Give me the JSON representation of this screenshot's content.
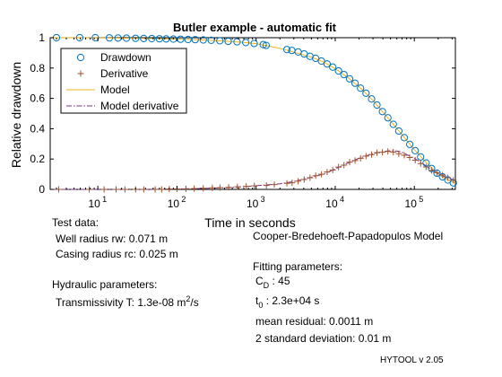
{
  "chart_data": {
    "type": "scatter",
    "title": "Butler example - automatic fit",
    "xlabel": "Time in seconds",
    "ylabel": "Relative drawdown",
    "x_scale": "log",
    "xlim": [
      2.5,
      330000
    ],
    "ylim": [
      0,
      1
    ],
    "x_ticks": [
      10,
      100,
      1000,
      10000,
      100000
    ],
    "x_tick_labels": [
      {
        "base": "10",
        "exp": "1"
      },
      {
        "base": "10",
        "exp": "2"
      },
      {
        "base": "10",
        "exp": "3"
      },
      {
        "base": "10",
        "exp": "4"
      },
      {
        "base": "10",
        "exp": "5"
      }
    ],
    "y_ticks": [
      0,
      0.2,
      0.4,
      0.6,
      0.8,
      1
    ],
    "y_tick_labels": [
      "0",
      "0.2",
      "0.4",
      "0.6",
      "0.8",
      "1"
    ],
    "grid": false,
    "legend_placement": "top-left",
    "series": [
      {
        "name": "Drawdown",
        "marker": "circle",
        "color": "#0072bd",
        "fill": "#ffd84a",
        "points": [
          [
            3,
            1.0
          ],
          [
            5.9,
            1.0
          ],
          [
            9.3,
            1.0
          ],
          [
            14,
            0.999
          ],
          [
            18,
            0.998
          ],
          [
            23,
            0.997
          ],
          [
            30,
            0.996
          ],
          [
            38,
            0.995
          ],
          [
            48,
            0.994
          ],
          [
            60,
            0.993
          ],
          [
            73,
            0.992
          ],
          [
            90,
            0.991
          ],
          [
            111,
            0.99
          ],
          [
            138,
            0.988
          ],
          [
            170,
            0.987
          ],
          [
            215,
            0.985
          ],
          [
            271,
            0.983
          ],
          [
            348,
            0.98
          ],
          [
            444,
            0.976
          ],
          [
            574,
            0.973
          ],
          [
            740,
            0.968
          ],
          [
            945,
            0.962
          ],
          [
            1230,
            0.954
          ],
          [
            1340,
            0.949
          ],
          [
            2450,
            0.922
          ],
          [
            2830,
            0.916
          ],
          [
            3400,
            0.906
          ],
          [
            4050,
            0.893
          ],
          [
            4800,
            0.877
          ],
          [
            5660,
            0.864
          ],
          [
            6700,
            0.846
          ],
          [
            7900,
            0.827
          ],
          [
            9300,
            0.806
          ],
          [
            11000,
            0.781
          ],
          [
            12900,
            0.757
          ],
          [
            15200,
            0.729
          ],
          [
            17800,
            0.7
          ],
          [
            20900,
            0.667
          ],
          [
            24500,
            0.634
          ],
          [
            28800,
            0.596
          ],
          [
            33700,
            0.556
          ],
          [
            39500,
            0.513
          ],
          [
            46300,
            0.472
          ],
          [
            54200,
            0.429
          ],
          [
            63600,
            0.385
          ],
          [
            74600,
            0.341
          ],
          [
            87400,
            0.297
          ],
          [
            102500,
            0.255
          ],
          [
            120000,
            0.214
          ],
          [
            140700,
            0.174
          ],
          [
            165000,
            0.138
          ],
          [
            193000,
            0.107
          ],
          [
            227000,
            0.083
          ],
          [
            265000,
            0.062
          ],
          [
            311000,
            0.043
          ]
        ]
      },
      {
        "name": "Derivative",
        "marker": "plus",
        "color": "#a0522d",
        "points": [
          [
            3.2,
            0.0
          ],
          [
            7.8,
            0.0
          ],
          [
            12,
            0.0
          ],
          [
            17,
            0.0
          ],
          [
            22,
            0.0
          ],
          [
            30,
            0.0
          ],
          [
            38,
            0.0
          ],
          [
            53,
            0.0
          ],
          [
            64,
            0.0
          ],
          [
            80,
            0.002
          ],
          [
            100,
            0.003
          ],
          [
            130,
            0.004
          ],
          [
            165,
            0.005
          ],
          [
            215,
            0.007
          ],
          [
            280,
            0.01
          ],
          [
            350,
            0.012
          ],
          [
            450,
            0.014
          ],
          [
            580,
            0.017
          ],
          [
            750,
            0.02
          ],
          [
            950,
            0.024
          ],
          [
            1350,
            0.026
          ],
          [
            1700,
            0.032
          ],
          [
            2450,
            0.04
          ],
          [
            2850,
            0.044
          ],
          [
            3400,
            0.054
          ],
          [
            4050,
            0.065
          ],
          [
            4800,
            0.077
          ],
          [
            5660,
            0.09
          ],
          [
            6700,
            0.1
          ],
          [
            7900,
            0.115
          ],
          [
            9300,
            0.128
          ],
          [
            11000,
            0.147
          ],
          [
            12900,
            0.16
          ],
          [
            15200,
            0.18
          ],
          [
            17800,
            0.19
          ],
          [
            20900,
            0.205
          ],
          [
            24500,
            0.22
          ],
          [
            28800,
            0.229
          ],
          [
            33700,
            0.242
          ],
          [
            39500,
            0.245
          ],
          [
            46300,
            0.25
          ],
          [
            54200,
            0.246
          ],
          [
            63600,
            0.235
          ],
          [
            74600,
            0.225
          ],
          [
            87400,
            0.21
          ],
          [
            102500,
            0.192
          ],
          [
            120000,
            0.17
          ],
          [
            140700,
            0.148
          ],
          [
            165000,
            0.125
          ],
          [
            193000,
            0.11
          ],
          [
            227000,
            0.095
          ],
          [
            265000,
            0.077
          ],
          [
            311000,
            0.06
          ]
        ]
      },
      {
        "name": "Model",
        "style": "solid",
        "color": "#edb120",
        "points": [
          [
            2.5,
            1.0
          ],
          [
            10,
            0.999
          ],
          [
            50,
            0.995
          ],
          [
            100,
            0.991
          ],
          [
            200,
            0.986
          ],
          [
            400,
            0.978
          ],
          [
            700,
            0.969
          ],
          [
            1000,
            0.961
          ],
          [
            2000,
            0.93
          ],
          [
            3000,
            0.905
          ],
          [
            5000,
            0.872
          ],
          [
            7000,
            0.842
          ],
          [
            10000,
            0.796
          ],
          [
            15000,
            0.731
          ],
          [
            20000,
            0.677
          ],
          [
            30000,
            0.587
          ],
          [
            40000,
            0.51
          ],
          [
            50000,
            0.451
          ],
          [
            70000,
            0.36
          ],
          [
            100000,
            0.262
          ],
          [
            150000,
            0.163
          ],
          [
            200000,
            0.1
          ],
          [
            250000,
            0.068
          ],
          [
            330000,
            0.04
          ]
        ]
      },
      {
        "name": "Model derivative",
        "style": "dash-dot",
        "color": "#7e2f8e",
        "points": [
          [
            2.5,
            0.0
          ],
          [
            50,
            0.0
          ],
          [
            100,
            0.003
          ],
          [
            200,
            0.006
          ],
          [
            400,
            0.011
          ],
          [
            700,
            0.018
          ],
          [
            1000,
            0.024
          ],
          [
            2000,
            0.037
          ],
          [
            3000,
            0.052
          ],
          [
            5000,
            0.08
          ],
          [
            7000,
            0.1
          ],
          [
            10000,
            0.135
          ],
          [
            15000,
            0.177
          ],
          [
            20000,
            0.205
          ],
          [
            30000,
            0.236
          ],
          [
            40000,
            0.25
          ],
          [
            50000,
            0.255
          ],
          [
            60000,
            0.253
          ],
          [
            70000,
            0.245
          ],
          [
            100000,
            0.205
          ],
          [
            150000,
            0.145
          ],
          [
            200000,
            0.105
          ],
          [
            250000,
            0.08
          ],
          [
            330000,
            0.058
          ]
        ]
      }
    ]
  },
  "info": {
    "test_data_heading": "Test data:",
    "well_radius": "Well radius rw: 0.071 m",
    "casing_radius": "Casing radius rc: 0.025 m",
    "hydraulic_heading": "Hydraulic parameters:",
    "transmissivity_prefix": "Transmissivity T: 1.3e-08 m",
    "transmissivity_exp": "2",
    "transmissivity_suffix": "/s",
    "model_name": "Cooper-Bredehoeft-Papadopulos Model",
    "fitting_heading": "Fitting parameters:",
    "cd_symbol": "C",
    "cd_sub": "D",
    "cd_value": " : 45",
    "t0_symbol": "t",
    "t0_sub": "0",
    "t0_value": " : 2.3e+04 s",
    "mean_residual": "mean residual: 0.0011 m",
    "two_std": "2 standard deviation: 0.01 m",
    "version": "HYTOOL v 2.05"
  }
}
